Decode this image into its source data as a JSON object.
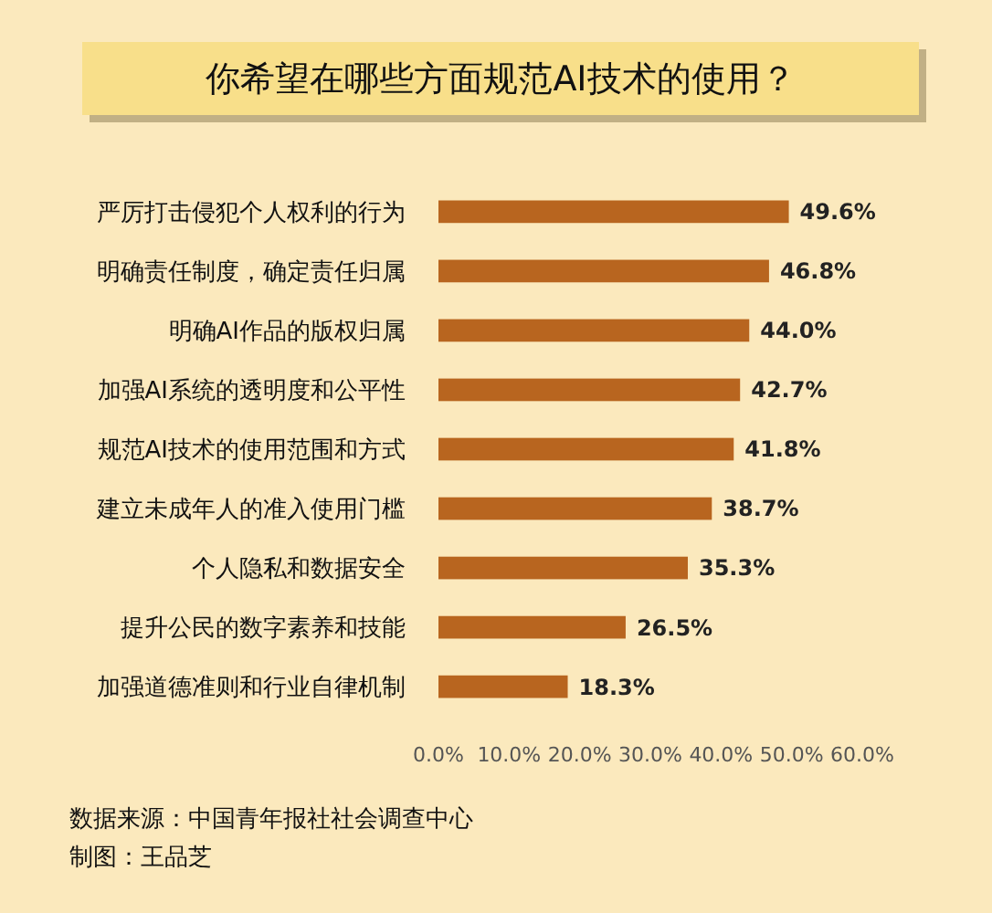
{
  "chart_data": {
    "type": "bar",
    "orientation": "horizontal",
    "title": "你希望在哪些方面规范AI技术的使用？",
    "categories": [
      "严厉打击侵犯个人权利的行为",
      "明确责任制度，确定责任归属",
      "明确AI作品的版权归属",
      "加强AI系统的透明度和公平性",
      "规范AI技术的使用范围和方式",
      "建立未成年人的准入使用门槛",
      "个人隐私和数据安全",
      "提升公民的数字素养和技能",
      "加强道德准则和行业自律机制"
    ],
    "values": [
      49.6,
      46.8,
      44.0,
      42.7,
      41.8,
      38.7,
      35.3,
      26.5,
      18.3
    ],
    "value_labels": [
      "49.6%",
      "46.8%",
      "44.0%",
      "42.7%",
      "41.8%",
      "38.7%",
      "35.3%",
      "26.5%",
      "18.3%"
    ],
    "color": "#b8651f",
    "xlim": [
      0,
      60
    ],
    "xticks": [
      {
        "value": 0,
        "label": "0.0%"
      },
      {
        "value": 10,
        "label": "10.0%"
      },
      {
        "value": 20,
        "label": "20.0%"
      },
      {
        "value": 30,
        "label": "30.0%"
      },
      {
        "value": 40,
        "label": "40.0%"
      },
      {
        "value": 50,
        "label": "50.0%"
      },
      {
        "value": 60,
        "label": "60.0%"
      }
    ],
    "grid": false,
    "annotations": [
      "数据来源：中国青年报社社会调查中心",
      "制图：王品芝"
    ]
  }
}
